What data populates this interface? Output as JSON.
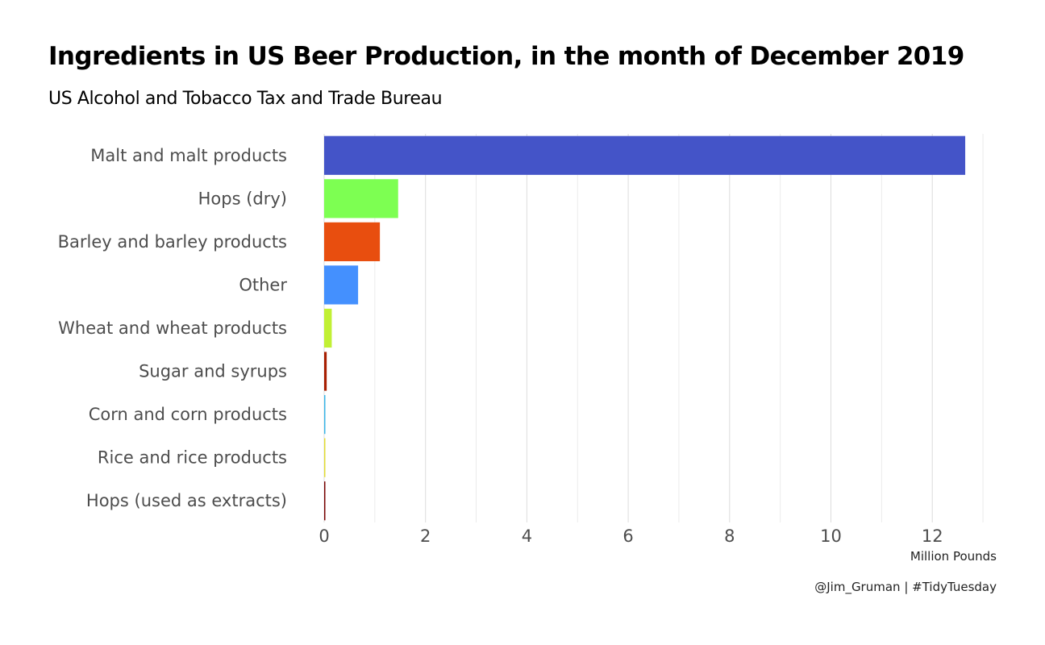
{
  "chart_data": {
    "type": "bar",
    "orientation": "horizontal",
    "title": "Ingredients in US Beer Production, in the month of December 2019",
    "subtitle": "US Alcohol and Tobacco Tax and Trade Bureau",
    "xlabel": "Million Pounds",
    "ylabel": "",
    "caption": "@Jim_Gruman | #TidyTuesday",
    "xlim": [
      0,
      13
    ],
    "xticks": [
      0,
      2,
      4,
      6,
      8,
      10,
      12
    ],
    "grid": true,
    "legend": "none",
    "categories": [
      "Malt and malt products",
      "Hops (dry)",
      "Barley and barley products",
      "Other",
      "Wheat and wheat products",
      "Sugar and syrups",
      "Corn and corn products",
      "Rice and rice products",
      "Hops (used as extracts)"
    ],
    "values": [
      12.65,
      1.46,
      1.1,
      0.67,
      0.15,
      0.05,
      0.015,
      0.01,
      0.008
    ],
    "colors": [
      "#4454c8",
      "#7dff52",
      "#e84e0f",
      "#4490fe",
      "#c1f034",
      "#a82003",
      "#3bb6e7",
      "#e2dc35",
      "#7a0403"
    ]
  }
}
